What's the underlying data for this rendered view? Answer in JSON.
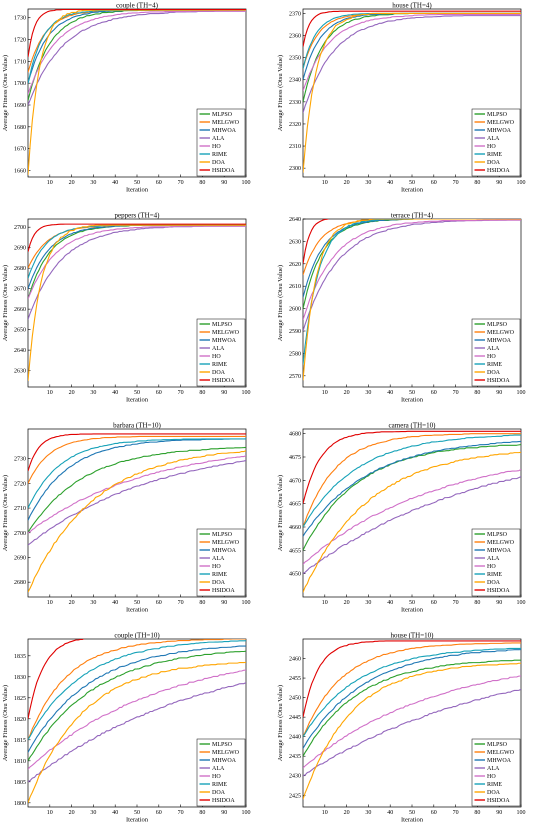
{
  "legend_labels": [
    "MLPSO",
    "MELGWO",
    "MHWOA",
    "ALA",
    "HO",
    "RIME",
    "DOA",
    "HSIDOA"
  ],
  "series_colors": {
    "MLPSO": "#2ca02c",
    "MELGWO": "#ff7f0e",
    "MHWOA": "#1f77b4",
    "ALA": "#9467bd",
    "HO": "#d070c8",
    "RIME": "#17a2b8",
    "DOA": "#ffa500",
    "HSIDOA": "#e00000"
  },
  "chart_data": [
    {
      "type": "line",
      "title": "couple (TH=4)",
      "xlabel": "Iteration",
      "ylabel": "Average Fitness (Otsu Value)",
      "xlim": [
        0,
        100
      ],
      "ylim": [
        1657,
        1734
      ],
      "xticks": [
        10,
        20,
        30,
        40,
        50,
        60,
        70,
        80,
        90,
        100
      ],
      "yticks": [
        1660,
        1670,
        1680,
        1690,
        1700,
        1710,
        1720,
        1730
      ],
      "legend_position": "bottom-right",
      "series": [
        {
          "name": "MLPSO",
          "start": 1692,
          "final": 1733.5,
          "rate": 10
        },
        {
          "name": "MELGWO",
          "start": 1705,
          "final": 1733.5,
          "rate": 8
        },
        {
          "name": "MHWOA",
          "start": 1700,
          "final": 1733.5,
          "rate": 9
        },
        {
          "name": "ALA",
          "start": 1690,
          "final": 1733,
          "rate": 16
        },
        {
          "name": "HO",
          "start": 1695,
          "final": 1733,
          "rate": 13
        },
        {
          "name": "RIME",
          "start": 1700,
          "final": 1733.5,
          "rate": 7
        },
        {
          "name": "DOA",
          "start": 1658,
          "final": 1733.5,
          "rate": 5
        },
        {
          "name": "HSIDOA",
          "start": 1712,
          "final": 1733.8,
          "rate": 3
        }
      ]
    },
    {
      "type": "line",
      "title": "house (TH=4)",
      "xlabel": "Iteration",
      "ylabel": "Average Fitness (Otsu Value)",
      "xlim": [
        0,
        100
      ],
      "ylim": [
        2296,
        2372
      ],
      "xticks": [
        10,
        20,
        30,
        40,
        50,
        60,
        70,
        80,
        90,
        100
      ],
      "yticks": [
        2300,
        2310,
        2320,
        2330,
        2340,
        2350,
        2360,
        2370
      ],
      "legend_position": "bottom-right",
      "series": [
        {
          "name": "MLPSO",
          "start": 2330,
          "final": 2370,
          "rate": 9
        },
        {
          "name": "MELGWO",
          "start": 2345,
          "final": 2370,
          "rate": 7
        },
        {
          "name": "MHWOA",
          "start": 2340,
          "final": 2370,
          "rate": 8
        },
        {
          "name": "ALA",
          "start": 2325,
          "final": 2369,
          "rate": 14
        },
        {
          "name": "HO",
          "start": 2335,
          "final": 2369.5,
          "rate": 12
        },
        {
          "name": "RIME",
          "start": 2345,
          "final": 2370,
          "rate": 6
        },
        {
          "name": "DOA",
          "start": 2298,
          "final": 2370,
          "rate": 6
        },
        {
          "name": "HSIDOA",
          "start": 2355,
          "final": 2371,
          "rate": 3
        }
      ]
    },
    {
      "type": "line",
      "title": "peppers (TH=4)",
      "xlabel": "Iteration",
      "ylabel": "Average Fitness (Otsu Value)",
      "xlim": [
        0,
        100
      ],
      "ylim": [
        2622,
        2704
      ],
      "xticks": [
        10,
        20,
        30,
        40,
        50,
        60,
        70,
        80,
        90,
        100
      ],
      "yticks": [
        2630,
        2640,
        2650,
        2660,
        2670,
        2680,
        2690,
        2700
      ],
      "legend_position": "bottom-right",
      "series": [
        {
          "name": "MLPSO",
          "start": 2665,
          "final": 2701,
          "rate": 10
        },
        {
          "name": "MELGWO",
          "start": 2680,
          "final": 2701,
          "rate": 9
        },
        {
          "name": "MHWOA",
          "start": 2670,
          "final": 2701,
          "rate": 10
        },
        {
          "name": "ALA",
          "start": 2655,
          "final": 2700.5,
          "rate": 15
        },
        {
          "name": "HO",
          "start": 2665,
          "final": 2700.5,
          "rate": 13
        },
        {
          "name": "RIME",
          "start": 2675,
          "final": 2701,
          "rate": 8
        },
        {
          "name": "DOA",
          "start": 2625,
          "final": 2701,
          "rate": 6
        },
        {
          "name": "HSIDOA",
          "start": 2688,
          "final": 2701.5,
          "rate": 3
        }
      ]
    },
    {
      "type": "line",
      "title": "terrace (TH=4)",
      "xlabel": "Iteration",
      "ylabel": "Average Fitness (Otsu Value)",
      "xlim": [
        0,
        100
      ],
      "ylim": [
        2565,
        2640
      ],
      "xticks": [
        10,
        20,
        30,
        40,
        50,
        60,
        70,
        80,
        90,
        100
      ],
      "yticks": [
        2570,
        2580,
        2590,
        2600,
        2610,
        2620,
        2630,
        2640
      ],
      "legend_position": "bottom-right",
      "series": [
        {
          "name": "MLPSO",
          "start": 2600,
          "final": 2640,
          "rate": 9
        },
        {
          "name": "MELGWO",
          "start": 2615,
          "final": 2640,
          "rate": 8
        },
        {
          "name": "MHWOA",
          "start": 2605,
          "final": 2640,
          "rate": 9
        },
        {
          "name": "ALA",
          "start": 2590,
          "final": 2639.5,
          "rate": 16
        },
        {
          "name": "HO",
          "start": 2595,
          "final": 2639.5,
          "rate": 14
        },
        {
          "name": "RIME",
          "start": 2575,
          "final": 2640,
          "rate": 7
        },
        {
          "name": "DOA",
          "start": 2568,
          "final": 2640,
          "rate": 6
        },
        {
          "name": "HSIDOA",
          "start": 2620,
          "final": 2640.5,
          "rate": 3
        }
      ]
    },
    {
      "type": "line",
      "title": "barbara (TH=10)",
      "xlabel": "Iteration",
      "ylabel": "Average Fitness (Otsu Value)",
      "xlim": [
        0,
        100
      ],
      "ylim": [
        2674,
        2742
      ],
      "xticks": [
        10,
        20,
        30,
        40,
        50,
        60,
        70,
        80,
        90,
        100
      ],
      "yticks": [
        2680,
        2690,
        2700,
        2710,
        2720,
        2730
      ],
      "legend_position": "bottom-right",
      "series": [
        {
          "name": "MLPSO",
          "start": 2700,
          "final": 2735,
          "rate": 25
        },
        {
          "name": "MELGWO",
          "start": 2720,
          "final": 2739,
          "rate": 10
        },
        {
          "name": "MHWOA",
          "start": 2705,
          "final": 2738,
          "rate": 18
        },
        {
          "name": "ALA",
          "start": 2695,
          "final": 2737,
          "rate": 60
        },
        {
          "name": "HO",
          "start": 2700,
          "final": 2737,
          "rate": 55
        },
        {
          "name": "RIME",
          "start": 2710,
          "final": 2738,
          "rate": 15
        },
        {
          "name": "DOA",
          "start": 2676,
          "final": 2735,
          "rate": 30
        },
        {
          "name": "HSIDOA",
          "start": 2725,
          "final": 2740,
          "rate": 5
        }
      ]
    },
    {
      "type": "line",
      "title": "camera (TH=10)",
      "xlabel": "Iteration",
      "ylabel": "Average Fitness (Otsu Value)",
      "xlim": [
        0,
        100
      ],
      "ylim": [
        4645,
        4681
      ],
      "xticks": [
        10,
        20,
        30,
        40,
        50,
        60,
        70,
        80,
        90,
        100
      ],
      "yticks": [
        4650,
        4655,
        4660,
        4665,
        4670,
        4675,
        4680
      ],
      "legend_position": "bottom-right",
      "series": [
        {
          "name": "MLPSO",
          "start": 4655,
          "final": 4678,
          "rate": 25
        },
        {
          "name": "MELGWO",
          "start": 4660,
          "final": 4680,
          "rate": 15
        },
        {
          "name": "MHWOA",
          "start": 4658,
          "final": 4679,
          "rate": 30
        },
        {
          "name": "ALA",
          "start": 4650,
          "final": 4679,
          "rate": 80
        },
        {
          "name": "HO",
          "start": 4652,
          "final": 4677,
          "rate": 60
        },
        {
          "name": "RIME",
          "start": 4660,
          "final": 4680,
          "rate": 25
        },
        {
          "name": "DOA",
          "start": 4646,
          "final": 4677,
          "rate": 30
        },
        {
          "name": "HSIDOA",
          "start": 4665,
          "final": 4680.5,
          "rate": 8
        }
      ]
    },
    {
      "type": "line",
      "title": "couple (TH=10)",
      "xlabel": "Iteration",
      "ylabel": "Average Fitness (Otsu Value)",
      "xlim": [
        0,
        100
      ],
      "ylim": [
        1799,
        1839
      ],
      "xticks": [
        10,
        20,
        30,
        40,
        50,
        60,
        70,
        80,
        90,
        100
      ],
      "yticks": [
        1800,
        1805,
        1810,
        1815,
        1820,
        1825,
        1830,
        1835
      ],
      "legend_position": "bottom-right",
      "series": [
        {
          "name": "MLPSO",
          "start": 1810,
          "final": 1837,
          "rate": 30
        },
        {
          "name": "MELGWO",
          "start": 1815,
          "final": 1839,
          "rate": 18
        },
        {
          "name": "MHWOA",
          "start": 1812,
          "final": 1838,
          "rate": 28
        },
        {
          "name": "ALA",
          "start": 1805,
          "final": 1838,
          "rate": 80
        },
        {
          "name": "HO",
          "start": 1808,
          "final": 1837,
          "rate": 60
        },
        {
          "name": "RIME",
          "start": 1815,
          "final": 1839,
          "rate": 25
        },
        {
          "name": "DOA",
          "start": 1800,
          "final": 1834,
          "rate": 25
        },
        {
          "name": "HSIDOA",
          "start": 1820,
          "final": 1839.5,
          "rate": 7
        }
      ]
    },
    {
      "type": "line",
      "title": "house (TH=10)",
      "xlabel": "Iteration",
      "ylabel": "Average Fitness (Otsu Value)",
      "xlim": [
        0,
        100
      ],
      "ylim": [
        2422,
        2465
      ],
      "xticks": [
        10,
        20,
        30,
        40,
        50,
        60,
        70,
        80,
        90,
        100
      ],
      "yticks": [
        2425,
        2430,
        2435,
        2440,
        2445,
        2450,
        2455,
        2460
      ],
      "legend_position": "bottom-right",
      "series": [
        {
          "name": "MLPSO",
          "start": 2435,
          "final": 2460,
          "rate": 25
        },
        {
          "name": "MELGWO",
          "start": 2440,
          "final": 2464,
          "rate": 18
        },
        {
          "name": "MHWOA",
          "start": 2437,
          "final": 2463,
          "rate": 28
        },
        {
          "name": "ALA",
          "start": 2430,
          "final": 2463,
          "rate": 90
        },
        {
          "name": "HO",
          "start": 2432,
          "final": 2461,
          "rate": 60
        },
        {
          "name": "RIME",
          "start": 2440,
          "final": 2463,
          "rate": 25
        },
        {
          "name": "DOA",
          "start": 2424,
          "final": 2459,
          "rate": 22
        },
        {
          "name": "HSIDOA",
          "start": 2445,
          "final": 2464.5,
          "rate": 7
        }
      ]
    }
  ]
}
